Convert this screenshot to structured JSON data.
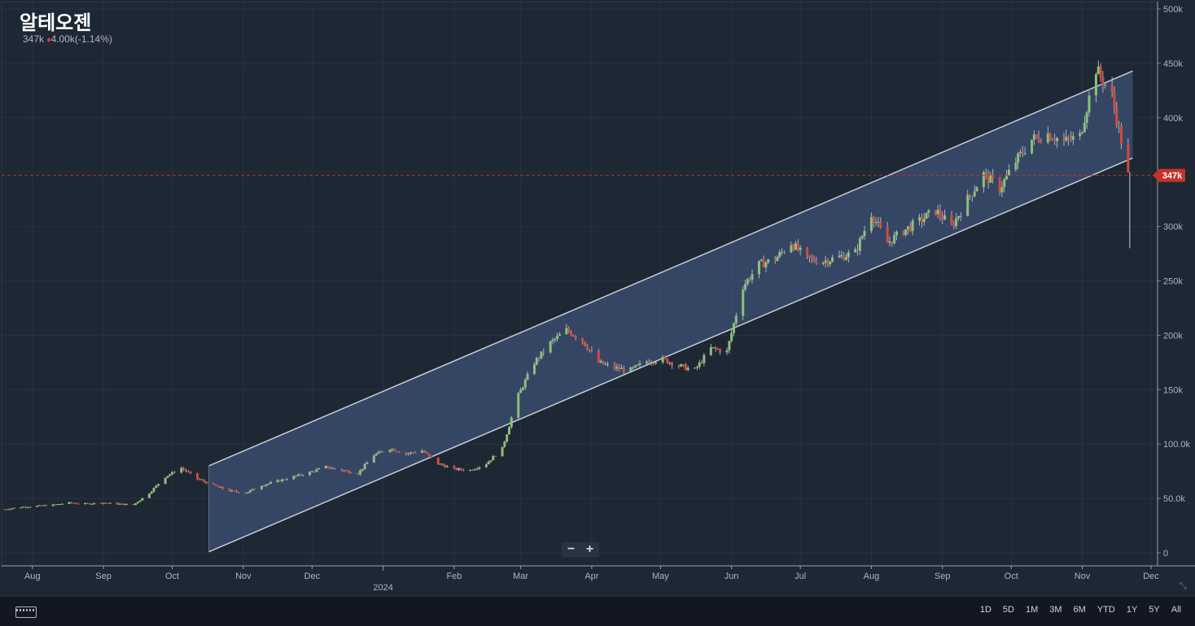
{
  "title": "알테오젠",
  "quote": {
    "last": "347k",
    "change_arrow": "♦",
    "change": "4.00k",
    "change_pct": "(-1.14%)"
  },
  "price_badge": "347k",
  "zoom": {
    "minus": "−",
    "plus": "+"
  },
  "collapse_icon": "arrows-collapse-icon",
  "keyboard_icon": "keyboard-icon",
  "ranges": [
    "1D",
    "5D",
    "1M",
    "3M",
    "6M",
    "YTD",
    "1Y",
    "5Y",
    "All"
  ],
  "colors": {
    "up": "#8cc176",
    "down": "#d24c3a",
    "channel": "#3d5275",
    "badge": "#c9302c"
  },
  "chart_data": {
    "type": "candlestick",
    "title": "알테오젠",
    "ylim": [
      0,
      500000
    ],
    "y_ticks": [
      {
        "v": 500000,
        "label": "500k"
      },
      {
        "v": 450000,
        "label": "450k"
      },
      {
        "v": 400000,
        "label": "400k"
      },
      {
        "v": 350000,
        "label": "350k"
      },
      {
        "v": 300000,
        "label": "300k"
      },
      {
        "v": 250000,
        "label": "250k"
      },
      {
        "v": 200000,
        "label": "200k"
      },
      {
        "v": 150000,
        "label": "150k"
      },
      {
        "v": 100000,
        "label": "100.0k"
      },
      {
        "v": 50000,
        "label": "50.0k"
      },
      {
        "v": 0,
        "label": "0"
      }
    ],
    "x_range": [
      "2023-07-20",
      "2024-12-01"
    ],
    "x_ticks": [
      {
        "d": "2023-08-01",
        "label": "Aug"
      },
      {
        "d": "2023-09-01",
        "label": "Sep"
      },
      {
        "d": "2023-10-01",
        "label": "Oct"
      },
      {
        "d": "2023-11-01",
        "label": "Nov"
      },
      {
        "d": "2023-12-01",
        "label": "Dec"
      },
      {
        "d": "2024-01-01",
        "label": "2024",
        "major": true
      },
      {
        "d": "2024-02-01",
        "label": "Feb"
      },
      {
        "d": "2024-03-01",
        "label": "Mar"
      },
      {
        "d": "2024-04-01",
        "label": "Apr"
      },
      {
        "d": "2024-05-01",
        "label": "May"
      },
      {
        "d": "2024-06-01",
        "label": "Jun"
      },
      {
        "d": "2024-07-01",
        "label": "Jul"
      },
      {
        "d": "2024-08-01",
        "label": "Aug"
      },
      {
        "d": "2024-09-01",
        "label": "Sep"
      },
      {
        "d": "2024-10-01",
        "label": "Oct"
      },
      {
        "d": "2024-11-01",
        "label": "Nov"
      },
      {
        "d": "2024-12-01",
        "label": "Dec"
      }
    ],
    "last_price": 347000,
    "channel": {
      "upper": [
        [
          "2023-10-17",
          80000
        ],
        [
          "2024-11-23",
          443000
        ]
      ],
      "lower": [
        [
          "2023-10-17",
          1000
        ],
        [
          "2024-11-23",
          363000
        ]
      ]
    },
    "closes_weekly": [
      [
        "2023-07-20",
        40000
      ],
      [
        "2023-07-27",
        42000
      ],
      [
        "2023-08-03",
        43000
      ],
      [
        "2023-08-10",
        44000
      ],
      [
        "2023-08-17",
        46000
      ],
      [
        "2023-08-24",
        45000
      ],
      [
        "2023-08-31",
        46000
      ],
      [
        "2023-09-07",
        45000
      ],
      [
        "2023-09-14",
        44000
      ],
      [
        "2023-09-21",
        55000
      ],
      [
        "2023-09-28",
        70000
      ],
      [
        "2023-10-05",
        78000
      ],
      [
        "2023-10-12",
        68000
      ],
      [
        "2023-10-19",
        62000
      ],
      [
        "2023-10-26",
        57000
      ],
      [
        "2023-11-02",
        55000
      ],
      [
        "2023-11-09",
        62000
      ],
      [
        "2023-11-16",
        66000
      ],
      [
        "2023-11-23",
        70000
      ],
      [
        "2023-11-30",
        74000
      ],
      [
        "2023-12-07",
        79000
      ],
      [
        "2023-12-14",
        76000
      ],
      [
        "2023-12-21",
        73000
      ],
      [
        "2023-12-28",
        90000
      ],
      [
        "2024-01-04",
        96000
      ],
      [
        "2024-01-11",
        91000
      ],
      [
        "2024-01-18",
        94000
      ],
      [
        "2024-01-25",
        82000
      ],
      [
        "2024-02-01",
        77000
      ],
      [
        "2024-02-08",
        76000
      ],
      [
        "2024-02-15",
        82000
      ],
      [
        "2024-02-22",
        96000
      ],
      [
        "2024-02-29",
        145000
      ],
      [
        "2024-03-07",
        175000
      ],
      [
        "2024-03-14",
        193000
      ],
      [
        "2024-03-21",
        205000
      ],
      [
        "2024-03-28",
        195000
      ],
      [
        "2024-04-04",
        175000
      ],
      [
        "2024-04-11",
        170000
      ],
      [
        "2024-04-18",
        168000
      ],
      [
        "2024-04-25",
        176000
      ],
      [
        "2024-05-02",
        178000
      ],
      [
        "2024-05-09",
        172000
      ],
      [
        "2024-05-16",
        168000
      ],
      [
        "2024-05-23",
        188000
      ],
      [
        "2024-05-30",
        185000
      ],
      [
        "2024-06-06",
        245000
      ],
      [
        "2024-06-13",
        265000
      ],
      [
        "2024-06-20",
        270000
      ],
      [
        "2024-06-27",
        285000
      ],
      [
        "2024-07-04",
        270000
      ],
      [
        "2024-07-11",
        268000
      ],
      [
        "2024-07-18",
        272000
      ],
      [
        "2024-07-25",
        276000
      ],
      [
        "2024-08-01",
        312000
      ],
      [
        "2024-08-08",
        285000
      ],
      [
        "2024-08-15",
        296000
      ],
      [
        "2024-08-22",
        305000
      ],
      [
        "2024-08-29",
        315000
      ],
      [
        "2024-09-05",
        300000
      ],
      [
        "2024-09-12",
        325000
      ],
      [
        "2024-09-19",
        348000
      ],
      [
        "2024-09-26",
        335000
      ],
      [
        "2024-10-03",
        360000
      ],
      [
        "2024-10-10",
        380000
      ],
      [
        "2024-10-17",
        385000
      ],
      [
        "2024-10-24",
        378000
      ],
      [
        "2024-10-31",
        383000
      ],
      [
        "2024-11-07",
        445000
      ],
      [
        "2024-11-14",
        420000
      ],
      [
        "2024-11-21",
        347000
      ]
    ]
  }
}
